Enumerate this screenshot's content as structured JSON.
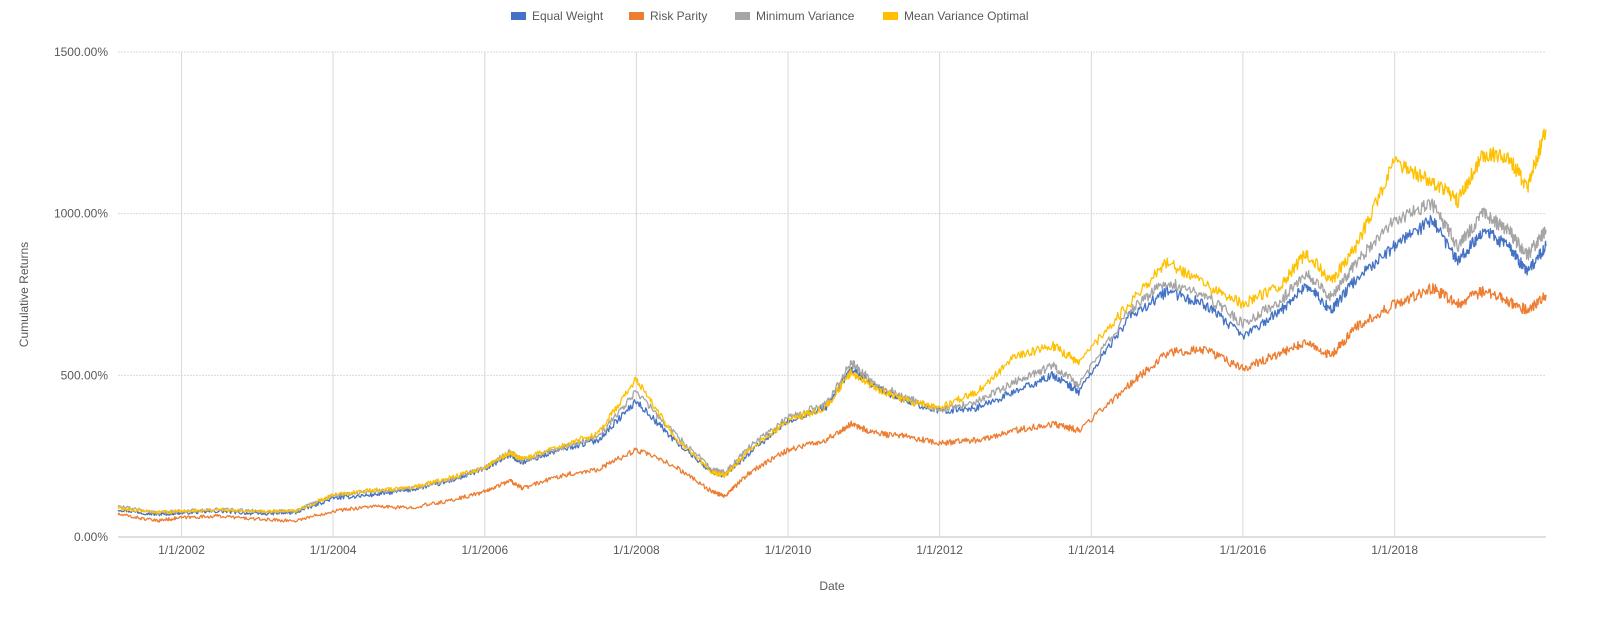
{
  "chart_data": {
    "type": "line",
    "title": "",
    "xlabel": "Date",
    "ylabel": "Cumulative Returns",
    "ylim": [
      0,
      1500
    ],
    "y_ticks": [
      "0.00%",
      "500.00%",
      "1000.00%",
      "1500.00%"
    ],
    "x_ticks": [
      "1/1/2002",
      "1/1/2004",
      "1/1/2006",
      "1/1/2008",
      "1/1/2010",
      "1/1/2012",
      "1/1/2014",
      "1/1/2016",
      "1/1/2018"
    ],
    "grid": true,
    "legend_position": "top-center",
    "x_range": [
      "2001-03-01",
      "2019-12-31"
    ],
    "x": [
      "2001-03-01",
      "2001-09-01",
      "2002-01-01",
      "2002-07-01",
      "2003-01-01",
      "2003-07-01",
      "2004-01-01",
      "2004-07-01",
      "2005-01-01",
      "2005-07-01",
      "2006-01-01",
      "2006-05-01",
      "2006-07-01",
      "2007-01-01",
      "2007-07-01",
      "2008-01-01",
      "2008-07-01",
      "2009-01-01",
      "2009-03-01",
      "2009-07-01",
      "2010-01-01",
      "2010-07-01",
      "2010-11-01",
      "2011-03-01",
      "2011-08-01",
      "2012-01-01",
      "2012-07-01",
      "2013-01-01",
      "2013-07-01",
      "2013-11-01",
      "2014-07-01",
      "2015-01-01",
      "2015-07-01",
      "2016-01-01",
      "2016-07-01",
      "2016-11-01",
      "2017-03-01",
      "2017-07-01",
      "2018-01-01",
      "2018-07-01",
      "2018-11-01",
      "2019-03-01",
      "2019-07-01",
      "2019-10-01",
      "2019-12-31"
    ],
    "series": [
      {
        "name": "Equal Weight",
        "color": "#4472C4",
        "values": [
          85,
          70,
          75,
          80,
          72,
          75,
          120,
          130,
          145,
          170,
          210,
          255,
          230,
          270,
          300,
          420,
          300,
          200,
          190,
          260,
          360,
          400,
          520,
          460,
          420,
          390,
          400,
          450,
          500,
          450,
          680,
          760,
          720,
          620,
          700,
          780,
          700,
          800,
          900,
          980,
          850,
          950,
          900,
          820,
          900
        ]
      },
      {
        "name": "Risk Parity",
        "color": "#ED7D31",
        "values": [
          70,
          50,
          60,
          65,
          55,
          50,
          80,
          95,
          90,
          110,
          140,
          175,
          150,
          190,
          210,
          270,
          220,
          140,
          125,
          200,
          270,
          300,
          350,
          320,
          310,
          290,
          300,
          330,
          350,
          330,
          470,
          570,
          580,
          520,
          570,
          600,
          560,
          650,
          720,
          770,
          720,
          760,
          730,
          700,
          750
        ]
      },
      {
        "name": "Minimum Variance",
        "color": "#A5A5A5",
        "values": [
          95,
          75,
          80,
          85,
          80,
          80,
          130,
          140,
          150,
          175,
          215,
          265,
          235,
          275,
          310,
          450,
          320,
          210,
          200,
          280,
          370,
          410,
          540,
          470,
          430,
          390,
          420,
          480,
          530,
          470,
          700,
          790,
          750,
          660,
          730,
          820,
          740,
          850,
          980,
          1030,
          900,
          1000,
          950,
          870,
          950
        ]
      },
      {
        "name": "Mean Variance Optimal",
        "color": "#FFC000",
        "values": [
          90,
          75,
          80,
          85,
          80,
          80,
          130,
          145,
          150,
          180,
          215,
          260,
          240,
          280,
          320,
          490,
          310,
          200,
          190,
          270,
          360,
          400,
          510,
          460,
          420,
          400,
          450,
          560,
          590,
          540,
          720,
          850,
          780,
          720,
          780,
          880,
          790,
          900,
          1160,
          1100,
          1040,
          1180,
          1180,
          1080,
          1260
        ]
      }
    ]
  }
}
